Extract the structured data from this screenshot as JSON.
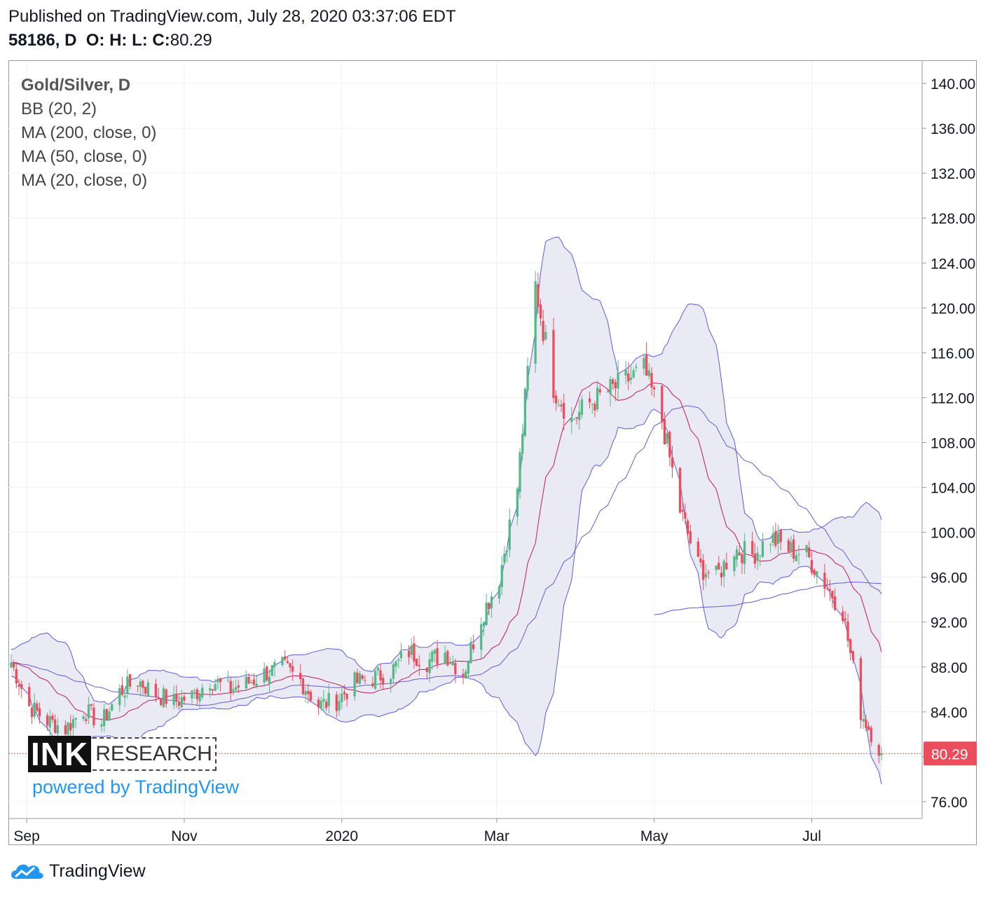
{
  "header": {
    "published": "Published on TradingView.com, July 28, 2020 03:37:06 EDT",
    "symbol": "58186, D",
    "ohlc_labels": "O: H: L: C:",
    "close_value": "80.29"
  },
  "legend": {
    "title": "Gold/Silver, D",
    "items": [
      "BB (20, 2)",
      "MA (200, close, 0)",
      "MA (50, close, 0)",
      "MA (20, close, 0)"
    ]
  },
  "branding": {
    "logo_left": "INK",
    "logo_right": "RESEARCH",
    "powered": "powered by TradingView",
    "footer": "TradingView"
  },
  "colors": {
    "up": "#53b987",
    "down": "#eb4d5c",
    "bb_band": "#5c5cdb",
    "bb_fill": "#e8e8f4",
    "ma20": "#c2185b",
    "ma50": "#6a5acd",
    "ma200": "#5b5bd6",
    "price_label": "#eb4d5c",
    "grid": "#eef0f3"
  },
  "chart_data": {
    "type": "candlestick",
    "title": "Gold/Silver, D",
    "ylim": [
      74.5,
      142
    ],
    "y_ticks": [
      "140.00",
      "136.00",
      "132.00",
      "128.00",
      "124.00",
      "120.00",
      "116.00",
      "112.00",
      "108.00",
      "104.00",
      "100.00",
      "96.00",
      "92.00",
      "88.00",
      "84.00",
      "80.00",
      "76.00"
    ],
    "x_ticks": [
      {
        "label": "Sep",
        "date": "2019-09-01"
      },
      {
        "label": "Nov",
        "date": "2019-11-01"
      },
      {
        "label": "2020",
        "date": "2020-01-01"
      },
      {
        "label": "Mar",
        "date": "2020-03-01"
      },
      {
        "label": "May",
        "date": "2020-05-01"
      },
      {
        "label": "Jul",
        "date": "2020-07-01"
      }
    ],
    "date_range": [
      "2019-08-26",
      "2020-07-28"
    ],
    "last_price": "80.29",
    "close_series": [
      {
        "date": "2019-08-26",
        "close": 88.4
      },
      {
        "date": "2019-09-02",
        "close": 84.5
      },
      {
        "date": "2019-09-09",
        "close": 83.2
      },
      {
        "date": "2019-09-16",
        "close": 82.5
      },
      {
        "date": "2019-09-23",
        "close": 84.2
      },
      {
        "date": "2019-09-30",
        "close": 83.0
      },
      {
        "date": "2019-10-07",
        "close": 85.8
      },
      {
        "date": "2019-10-14",
        "close": 86.8
      },
      {
        "date": "2019-10-21",
        "close": 85.6
      },
      {
        "date": "2019-10-28",
        "close": 84.9
      },
      {
        "date": "2019-11-04",
        "close": 85.4
      },
      {
        "date": "2019-11-11",
        "close": 86.9
      },
      {
        "date": "2019-11-18",
        "close": 86.0
      },
      {
        "date": "2019-11-25",
        "close": 86.5
      },
      {
        "date": "2019-12-02",
        "close": 87.4
      },
      {
        "date": "2019-12-09",
        "close": 88.0
      },
      {
        "date": "2019-12-16",
        "close": 86.8
      },
      {
        "date": "2019-12-23",
        "close": 84.6
      },
      {
        "date": "2019-12-30",
        "close": 85.0
      },
      {
        "date": "2020-01-06",
        "close": 86.6
      },
      {
        "date": "2020-01-13",
        "close": 87.0
      },
      {
        "date": "2020-01-20",
        "close": 87.6
      },
      {
        "date": "2020-01-27",
        "close": 89.4
      },
      {
        "date": "2020-02-03",
        "close": 88.5
      },
      {
        "date": "2020-02-10",
        "close": 89.3
      },
      {
        "date": "2020-02-17",
        "close": 87.4
      },
      {
        "date": "2020-02-24",
        "close": 92.5
      },
      {
        "date": "2020-03-02",
        "close": 96.0
      },
      {
        "date": "2020-03-09",
        "close": 104.0
      },
      {
        "date": "2020-03-16",
        "close": 122.0
      },
      {
        "date": "2020-03-23",
        "close": 113.0
      },
      {
        "date": "2020-03-30",
        "close": 110.0
      },
      {
        "date": "2020-04-06",
        "close": 111.5
      },
      {
        "date": "2020-04-13",
        "close": 112.5
      },
      {
        "date": "2020-04-20",
        "close": 113.5
      },
      {
        "date": "2020-04-27",
        "close": 114.5
      },
      {
        "date": "2020-05-04",
        "close": 110.0
      },
      {
        "date": "2020-05-11",
        "close": 102.0
      },
      {
        "date": "2020-05-18",
        "close": 97.0
      },
      {
        "date": "2020-05-25",
        "close": 96.0
      },
      {
        "date": "2020-06-01",
        "close": 98.5
      },
      {
        "date": "2020-06-08",
        "close": 98.0
      },
      {
        "date": "2020-06-15",
        "close": 99.5
      },
      {
        "date": "2020-06-22",
        "close": 98.5
      },
      {
        "date": "2020-06-29",
        "close": 98.0
      },
      {
        "date": "2020-07-06",
        "close": 95.5
      },
      {
        "date": "2020-07-13",
        "close": 93.0
      },
      {
        "date": "2020-07-20",
        "close": 84.0
      },
      {
        "date": "2020-07-28",
        "close": 80.29
      }
    ]
  }
}
